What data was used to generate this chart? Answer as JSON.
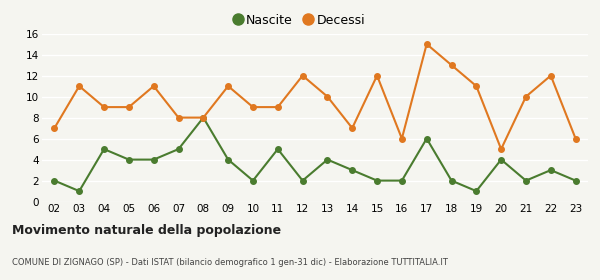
{
  "years": [
    "02",
    "03",
    "04",
    "05",
    "06",
    "07",
    "08",
    "09",
    "10",
    "11",
    "12",
    "13",
    "14",
    "15",
    "16",
    "17",
    "18",
    "19",
    "20",
    "21",
    "22",
    "23"
  ],
  "nascite": [
    2,
    1,
    5,
    4,
    4,
    5,
    8,
    4,
    2,
    5,
    2,
    4,
    3,
    2,
    2,
    6,
    2,
    1,
    4,
    2,
    3,
    2
  ],
  "decessi": [
    7,
    11,
    9,
    9,
    11,
    8,
    8,
    11,
    9,
    9,
    12,
    10,
    7,
    12,
    6,
    15,
    13,
    11,
    5,
    10,
    12,
    6
  ],
  "nascite_color": "#4a7c2f",
  "decessi_color": "#e07820",
  "legend_nascite": "Nascite",
  "legend_decessi": "Decessi",
  "ylim": [
    0,
    16
  ],
  "yticks": [
    0,
    2,
    4,
    6,
    8,
    10,
    12,
    14,
    16
  ],
  "title": "Movimento naturale della popolazione",
  "subtitle": "COMUNE DI ZIGNAGO (SP) - Dati ISTAT (bilancio demografico 1 gen-31 dic) - Elaborazione TUTTITALIA.IT",
  "bg_color": "#f5f5f0",
  "grid_color": "#ffffff",
  "marker_size": 4,
  "line_width": 1.5
}
